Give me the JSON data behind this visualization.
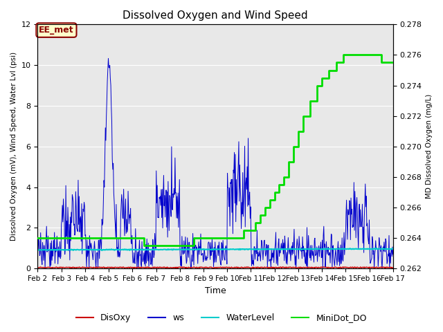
{
  "title": "Dissolved Oxygen and Wind Speed",
  "xlabel": "Time",
  "ylabel_left": "Dissolved Oxygen (mV), Wind Speed, Water Lvl (psi)",
  "ylabel_right": "MD Dissolved Oxygen (mg/L)",
  "ylim_left": [
    0,
    12
  ],
  "ylim_right": [
    0.262,
    0.278
  ],
  "yticks_left": [
    0,
    2,
    4,
    6,
    8,
    10,
    12
  ],
  "yticks_right": [
    0.262,
    0.264,
    0.266,
    0.268,
    0.27,
    0.272,
    0.274,
    0.276,
    0.278
  ],
  "bg_color": "#e8e8e8",
  "annotation_text": "EE_met",
  "annotation_color": "#8b0000",
  "annotation_bg": "#ffffcc",
  "annotation_border": "#8b0000",
  "ws_color": "#0000cc",
  "disoxy_color": "#cc0000",
  "waterlevel_color": "#00cccc",
  "minidot_color": "#00dd00",
  "legend_labels": [
    "DisOxy",
    "ws",
    "WaterLevel",
    "MiniDot_DO"
  ],
  "ws_lw": 0.7,
  "disoxy_lw": 1.0,
  "waterlevel_lw": 1.5,
  "minidot_lw": 2.0,
  "x_tick_labels": [
    "Feb 2",
    "Feb 3",
    "Feb 4",
    "Feb 5",
    "Feb 6",
    "Feb 7",
    "Feb 8",
    "Feb 9",
    "Feb 10",
    "Feb 11",
    "Feb 12",
    "Feb 13",
    "Feb 14",
    "Feb 15",
    "Feb 16",
    "Feb 17"
  ],
  "x_tick_positions": [
    2,
    3,
    4,
    5,
    6,
    7,
    8,
    9,
    10,
    11,
    12,
    13,
    14,
    15,
    16,
    17
  ],
  "minidot_t": [
    2.0,
    3.5,
    4.5,
    5.0,
    5.5,
    6.0,
    6.5,
    7.0,
    7.5,
    8.0,
    8.3,
    8.6,
    9.0,
    9.5,
    10.0,
    10.5,
    10.7,
    11.0,
    11.2,
    11.4,
    11.6,
    11.8,
    12.0,
    12.2,
    12.4,
    12.6,
    12.8,
    13.0,
    13.2,
    13.5,
    13.8,
    14.0,
    14.3,
    14.6,
    14.9,
    15.0,
    15.3,
    15.6,
    16.0,
    16.5,
    17.0
  ],
  "minidot_v": [
    0.264,
    0.264,
    0.264,
    0.264,
    0.264,
    0.264,
    0.2635,
    0.2635,
    0.2635,
    0.2635,
    0.2635,
    0.264,
    0.264,
    0.264,
    0.264,
    0.264,
    0.2645,
    0.2645,
    0.265,
    0.2655,
    0.266,
    0.2665,
    0.267,
    0.2675,
    0.268,
    0.269,
    0.27,
    0.271,
    0.272,
    0.273,
    0.274,
    0.2745,
    0.275,
    0.2755,
    0.276,
    0.276,
    0.276,
    0.276,
    0.276,
    0.2755,
    0.2755
  ]
}
